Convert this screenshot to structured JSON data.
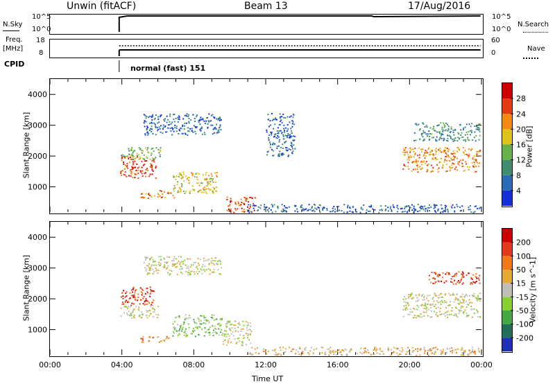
{
  "header": {
    "title_left": "Unwin (fitACF)",
    "title_center": "Beam 13",
    "title_right": "17/Aug/2016"
  },
  "top_panels": {
    "nsky_label": "N.Sky",
    "nsky_ticks": [
      "10^5",
      "10^0"
    ],
    "nsearch_label": "N.Search",
    "nsearch_ticks": [
      "10^5",
      "10^0"
    ],
    "freq_label": "Freq.",
    "freq_unit": "[MHz]",
    "freq_ticks": [
      "18",
      "8"
    ],
    "nave_label": "Nave",
    "nave_ticks": [
      "60",
      "0"
    ],
    "cpid_label": "CPID",
    "cpid_value": "normal (fast) 151"
  },
  "chart_data": [
    {
      "type": "heatmap",
      "name": "power",
      "ylabel": "Slant Range [km]",
      "yticks": [
        "1000",
        "2000",
        "3000",
        "4000"
      ],
      "ylim": [
        180,
        4500
      ],
      "xlim_hours": [
        0,
        24
      ],
      "colorbar_label": "Power [dB]",
      "colorbar_ticks": [
        "4",
        "8",
        "12",
        "16",
        "20",
        "24",
        "28"
      ],
      "colorbar_colors": [
        "#1530d8",
        "#2b6cb8",
        "#3f8f6f",
        "#65b34a",
        "#e0c21a",
        "#f28a12",
        "#e43a12",
        "#cc0000"
      ],
      "clusters": [
        {
          "t0": 3.9,
          "t1": 5.9,
          "r0": 1300,
          "r1": 2000,
          "level": 6
        },
        {
          "t0": 3.9,
          "t1": 6.2,
          "r0": 1900,
          "r1": 2300,
          "level": 3
        },
        {
          "t0": 5.0,
          "t1": 7.0,
          "r0": 650,
          "r1": 900,
          "level": 5
        },
        {
          "t0": 6.8,
          "t1": 9.3,
          "r0": 800,
          "r1": 1500,
          "level": 4
        },
        {
          "t0": 9.8,
          "t1": 11.4,
          "r0": 180,
          "r1": 700,
          "level": 6
        },
        {
          "t0": 5.2,
          "t1": 9.5,
          "r0": 2700,
          "r1": 3400,
          "level": 1
        },
        {
          "t0": 12.0,
          "t1": 13.6,
          "r0": 2000,
          "r1": 3400,
          "level": 1
        },
        {
          "t0": 11.0,
          "t1": 23.9,
          "r0": 180,
          "r1": 450,
          "level": 1
        },
        {
          "t0": 19.6,
          "t1": 23.9,
          "r0": 1500,
          "r1": 2300,
          "level": 5
        },
        {
          "t0": 20.2,
          "t1": 23.9,
          "r0": 2500,
          "r1": 3100,
          "level": 2
        }
      ]
    },
    {
      "type": "heatmap",
      "name": "velocity",
      "ylabel": "Slant Range [km]",
      "yticks": [
        "1000",
        "2000",
        "3000",
        "4000"
      ],
      "ylim": [
        180,
        4500
      ],
      "xlim_hours": [
        0,
        24
      ],
      "xticks": [
        "00:00",
        "04:00",
        "08:00",
        "12:00",
        "16:00",
        "20:00",
        "00:00"
      ],
      "xlabel": "Time UT",
      "colorbar_label": "Velocity [m s^-1]",
      "colorbar_ticks": [
        "200",
        "100",
        "50",
        "15",
        "-15",
        "-50",
        "-100",
        "-200"
      ],
      "colorbar_colors": [
        "#1f2fb8",
        "#1f6f5a",
        "#44a844",
        "#86d030",
        "#bfbfb8",
        "#e8a838",
        "#f07a18",
        "#e33a1a",
        "#cc0000"
      ],
      "clusters": [
        {
          "t0": 3.9,
          "t1": 5.8,
          "r0": 1800,
          "r1": 2400,
          "level": 7
        },
        {
          "t0": 3.9,
          "t1": 6.0,
          "r0": 1400,
          "r1": 1800,
          "level": 4
        },
        {
          "t0": 5.0,
          "t1": 6.6,
          "r0": 600,
          "r1": 800,
          "level": 6
        },
        {
          "t0": 6.8,
          "t1": 9.6,
          "r0": 800,
          "r1": 1500,
          "level": 3
        },
        {
          "t0": 9.6,
          "t1": 11.2,
          "r0": 500,
          "r1": 1300,
          "level": 4
        },
        {
          "t0": 5.2,
          "t1": 9.5,
          "r0": 2800,
          "r1": 3400,
          "level": 4
        },
        {
          "t0": 11.0,
          "t1": 23.9,
          "r0": 180,
          "r1": 450,
          "level": 5
        },
        {
          "t0": 19.6,
          "t1": 23.9,
          "r0": 1400,
          "r1": 2200,
          "level": 4
        },
        {
          "t0": 21.0,
          "t1": 23.9,
          "r0": 2500,
          "r1": 2900,
          "level": 7
        }
      ]
    }
  ]
}
